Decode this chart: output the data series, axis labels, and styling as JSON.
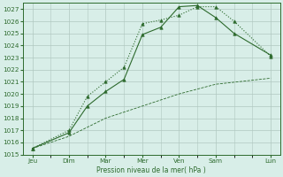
{
  "xlabel": "Pression niveau de la mer( hPa )",
  "background_color": "#d8eee8",
  "grid_color": "#b0c8c0",
  "line_color": "#2d6a2d",
  "ylim": [
    1015,
    1027.5
  ],
  "yticks": [
    1015,
    1016,
    1017,
    1018,
    1019,
    1020,
    1021,
    1022,
    1023,
    1024,
    1025,
    1026,
    1027
  ],
  "x_positions": [
    0,
    1,
    2,
    3,
    4,
    5,
    6,
    7,
    8,
    9,
    10,
    11,
    12,
    13
  ],
  "major_x_positions": [
    0,
    2,
    4,
    6,
    8,
    10,
    13
  ],
  "major_x_labels": [
    "Jeu",
    "Dim",
    "Mar",
    "Mer",
    "Ven",
    "Sam",
    "Lun"
  ],
  "series1_x": [
    0,
    2,
    3,
    4,
    5,
    6,
    7,
    8,
    9,
    10,
    11,
    13
  ],
  "series1_y": [
    1015.5,
    1016.8,
    1019.0,
    1020.2,
    1021.2,
    1024.9,
    1025.5,
    1027.2,
    1027.3,
    1026.3,
    1025.0,
    1023.2
  ],
  "series2_x": [
    0,
    2,
    3,
    4,
    5,
    6,
    7,
    8,
    9,
    10,
    11,
    13
  ],
  "series2_y": [
    1015.5,
    1017.0,
    1019.8,
    1021.0,
    1022.2,
    1025.8,
    1026.1,
    1026.5,
    1027.2,
    1027.2,
    1026.0,
    1023.1
  ],
  "series3_x": [
    0,
    2,
    4,
    6,
    8,
    10,
    13
  ],
  "series3_y": [
    1015.5,
    1016.5,
    1018.0,
    1019.0,
    1020.0,
    1020.8,
    1021.3
  ],
  "minor_x_positions": [
    0,
    1,
    2,
    3,
    4,
    5,
    6,
    7,
    8,
    9,
    10,
    11,
    12,
    13
  ]
}
